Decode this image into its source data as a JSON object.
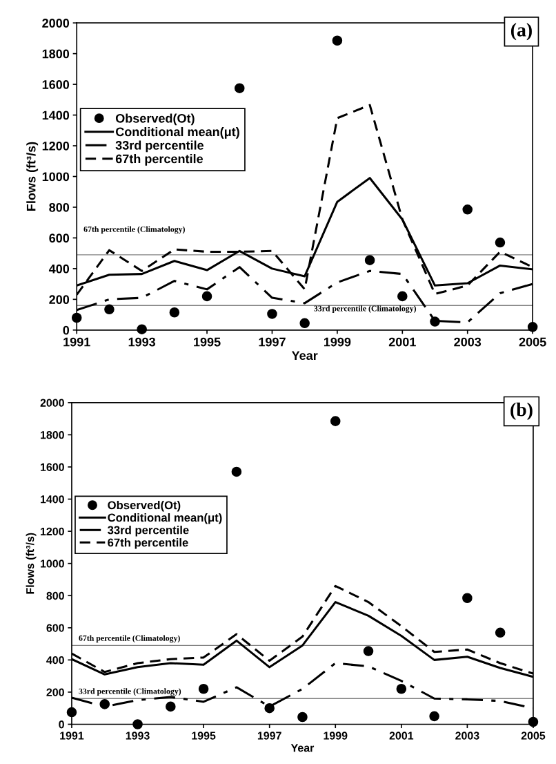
{
  "chart_data": [
    {
      "type": "line",
      "xlabel": "Year",
      "ylabel": "Flows (ft³/s)",
      "annotations": [
        "(a)"
      ],
      "x": [
        1991,
        1992,
        1993,
        1994,
        1995,
        1996,
        1997,
        1998,
        1999,
        2000,
        2001,
        2002,
        2003,
        2004,
        2005
      ],
      "xlim": [
        1991,
        2005
      ],
      "xticks": [
        1991,
        1993,
        1995,
        1997,
        1999,
        2001,
        2003,
        2005
      ],
      "ylim": [
        0,
        2000
      ],
      "yticks": [
        0,
        200,
        400,
        600,
        800,
        1000,
        1200,
        1400,
        1600,
        1800,
        2000
      ],
      "grid": false,
      "legend": "left",
      "ref_lines": [
        {
          "axis": "y",
          "value": 490,
          "label": "67th percentile (Climatology)",
          "color": "#808080",
          "line_style": "solid"
        },
        {
          "axis": "y",
          "value": 160,
          "label": "33rd percentile (Climatology)",
          "color": "#808080",
          "line_style": "solid"
        }
      ],
      "series": [
        {
          "name": "Observed(Ot)",
          "type": "scatter",
          "marker": "circle",
          "color": "#000000",
          "values": [
            80,
            135,
            5,
            115,
            220,
            1575,
            105,
            45,
            1885,
            455,
            220,
            55,
            785,
            570,
            20
          ]
        },
        {
          "name": "Conditional mean(μt)",
          "line_style": "solid",
          "color": "#000000",
          "values": [
            290,
            360,
            365,
            450,
            390,
            515,
            400,
            350,
            835,
            990,
            720,
            290,
            305,
            420,
            395
          ]
        },
        {
          "name": "33rd percentile",
          "line_style": "dashdot",
          "color": "#000000",
          "values": [
            130,
            200,
            210,
            320,
            265,
            410,
            210,
            175,
            310,
            385,
            365,
            60,
            50,
            240,
            300
          ]
        },
        {
          "name": "67th percentile",
          "line_style": "dashed",
          "color": "#000000",
          "values": [
            230,
            520,
            385,
            525,
            510,
            510,
            515,
            265,
            1380,
            1465,
            720,
            235,
            290,
            510,
            410
          ]
        }
      ]
    },
    {
      "type": "line",
      "xlabel": "Year",
      "ylabel": "Flows (ft³/s)",
      "annotations": [
        "(b)"
      ],
      "x": [
        1991,
        1992,
        1993,
        1994,
        1995,
        1996,
        1997,
        1998,
        1999,
        2000,
        2001,
        2002,
        2003,
        2004,
        2005
      ],
      "xlim": [
        1991,
        2005
      ],
      "xticks": [
        1991,
        1993,
        1995,
        1997,
        1999,
        2001,
        2003,
        2005
      ],
      "ylim": [
        0,
        2000
      ],
      "yticks": [
        0,
        200,
        400,
        600,
        800,
        1000,
        1200,
        1400,
        1600,
        1800,
        2000
      ],
      "grid": false,
      "legend": "left",
      "ref_lines": [
        {
          "axis": "y",
          "value": 490,
          "label": "67th percentile (Climatology)",
          "color": "#808080",
          "line_style": "solid"
        },
        {
          "axis": "y",
          "value": 160,
          "label": "33rd percentile (Climatology)",
          "color": "#808080",
          "line_style": "solid"
        }
      ],
      "series": [
        {
          "name": "Observed(Ot)",
          "type": "scatter",
          "marker": "circle",
          "color": "#000000",
          "values": [
            75,
            125,
            0,
            110,
            220,
            1570,
            100,
            45,
            1885,
            455,
            220,
            50,
            785,
            570,
            15
          ]
        },
        {
          "name": "Conditional mean(μt)",
          "line_style": "solid",
          "color": "#000000",
          "values": [
            405,
            310,
            355,
            380,
            370,
            520,
            355,
            490,
            760,
            675,
            550,
            400,
            420,
            350,
            295
          ]
        },
        {
          "name": "33rd percentile",
          "line_style": "dashdot",
          "color": "#000000",
          "values": [
            165,
            110,
            150,
            170,
            140,
            230,
            110,
            220,
            380,
            360,
            270,
            160,
            155,
            145,
            100
          ]
        },
        {
          "name": "67th percentile",
          "line_style": "dashed",
          "color": "#000000",
          "values": [
            440,
            325,
            380,
            405,
            415,
            560,
            395,
            545,
            860,
            760,
            610,
            450,
            465,
            380,
            315
          ]
        }
      ]
    }
  ]
}
